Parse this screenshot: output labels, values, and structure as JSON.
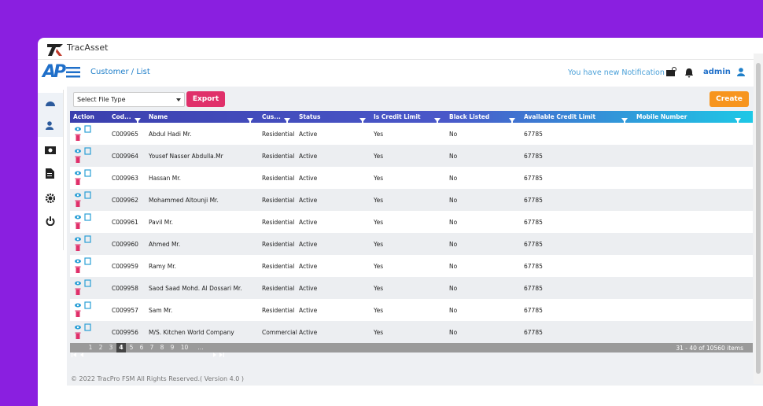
{
  "header": {
    "brand": "TracAsset",
    "logo": "AP",
    "breadcrumb": [
      "Customer",
      "List"
    ],
    "notification": "You have new Notification",
    "user": "admin"
  },
  "toolbar": {
    "file_select": "Select File Type",
    "export": "Export",
    "create": "Create"
  },
  "table": {
    "columns": [
      "Action",
      "Cod...",
      "Name",
      "Cus...",
      "Status",
      "Is Credit Limit",
      "Black Listed",
      "Available Credit Limit",
      "Mobile Number"
    ],
    "rows": [
      [
        "C009965",
        "Abdul Hadi Mr.",
        "Residential",
        "Active",
        "Yes",
        "No",
        67785
      ],
      [
        "C009964",
        "Yousef Nasser Abdulla.Mr",
        "Residential",
        "Active",
        "Yes",
        "No",
        67785
      ],
      [
        "C009963",
        "Hassan Mr.",
        "Residential",
        "Active",
        "Yes",
        "No",
        67785
      ],
      [
        "C009962",
        "Mohammed Altounji Mr.",
        "Residential",
        "Active",
        "Yes",
        "No",
        67785
      ],
      [
        "C009961",
        "Pavil Mr.",
        "Residential",
        "Active",
        "Yes",
        "No",
        67785
      ],
      [
        "C009960",
        "Ahmed Mr.",
        "Residential",
        "Active",
        "Yes",
        "No",
        67785
      ],
      [
        "C009959",
        "Ramy Mr.",
        "Residential",
        "Active",
        "Yes",
        "No",
        67785
      ],
      [
        "C009958",
        "Saod Saad Mohd. Al Dossari Mr.",
        "Residential",
        "Active",
        "Yes",
        "No",
        67785
      ],
      [
        "C009957",
        "Sam Mr.",
        "Residential",
        "Active",
        "Yes",
        "No",
        67785
      ],
      [
        "C009956",
        "M/S. Kitchen World Company",
        "Commercial",
        "Active",
        "Yes",
        "No",
        67785
      ]
    ]
  },
  "pager": {
    "pages": [
      "1",
      "2",
      "3",
      "4",
      "5",
      "6",
      "7",
      "8",
      "9",
      "10",
      "..."
    ],
    "summary": "31 - 40 of 10560 items"
  },
  "footer": "© 2022 TracPro FSM All Rights Reserved.( Version 4.0 )"
}
